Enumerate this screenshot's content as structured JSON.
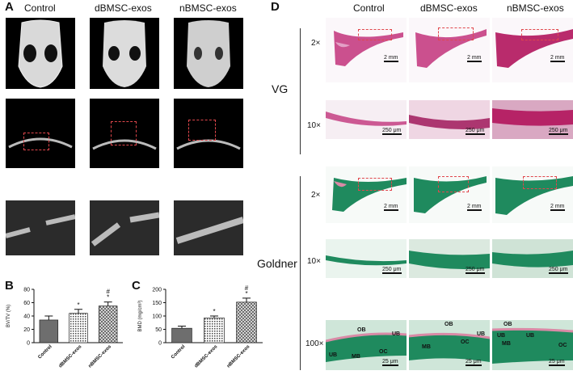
{
  "panels": {
    "A": "A",
    "B": "B",
    "C": "C",
    "D": "D"
  },
  "groups": [
    "Control",
    "dBMSC-exos",
    "nBMSC-exos"
  ],
  "vg_label": "VG",
  "goldner_label": "Goldner",
  "magnifications": {
    "m2": "2×",
    "m10": "10×",
    "m100": "100×"
  },
  "scalebars": {
    "mm": "2 mm",
    "um250": "250 μm",
    "um25": "25 μm"
  },
  "annotations": {
    "ob": "OB",
    "oc": "OC",
    "ub": "UB",
    "mb": "MB"
  },
  "colors": {
    "vg_pink": "#c2337a",
    "goldner_green": "#1f8a5e",
    "dash_red": "#e0474c"
  },
  "chart_data": [
    {
      "type": "bar",
      "ylabel": "BV/TV (%)",
      "ylim": [
        0,
        80
      ],
      "yticks": [
        0,
        20,
        40,
        60,
        80
      ],
      "categories": [
        "Control",
        "dBMSC-exos",
        "nBMSC-exos"
      ],
      "values": [
        34,
        44,
        55
      ],
      "errors": [
        6,
        6,
        6
      ],
      "marks": [
        "",
        "*",
        "#\n*"
      ]
    },
    {
      "type": "bar",
      "ylabel": "BMD (mg/cm³)",
      "ylim": [
        0,
        200
      ],
      "yticks": [
        0,
        50,
        100,
        150,
        200
      ],
      "categories": [
        "Control",
        "dBMSC-exos",
        "nBMSC-exos"
      ],
      "values": [
        54,
        93,
        152
      ],
      "errors": [
        8,
        7,
        15
      ],
      "marks": [
        "",
        "*",
        "#\n*"
      ]
    }
  ]
}
